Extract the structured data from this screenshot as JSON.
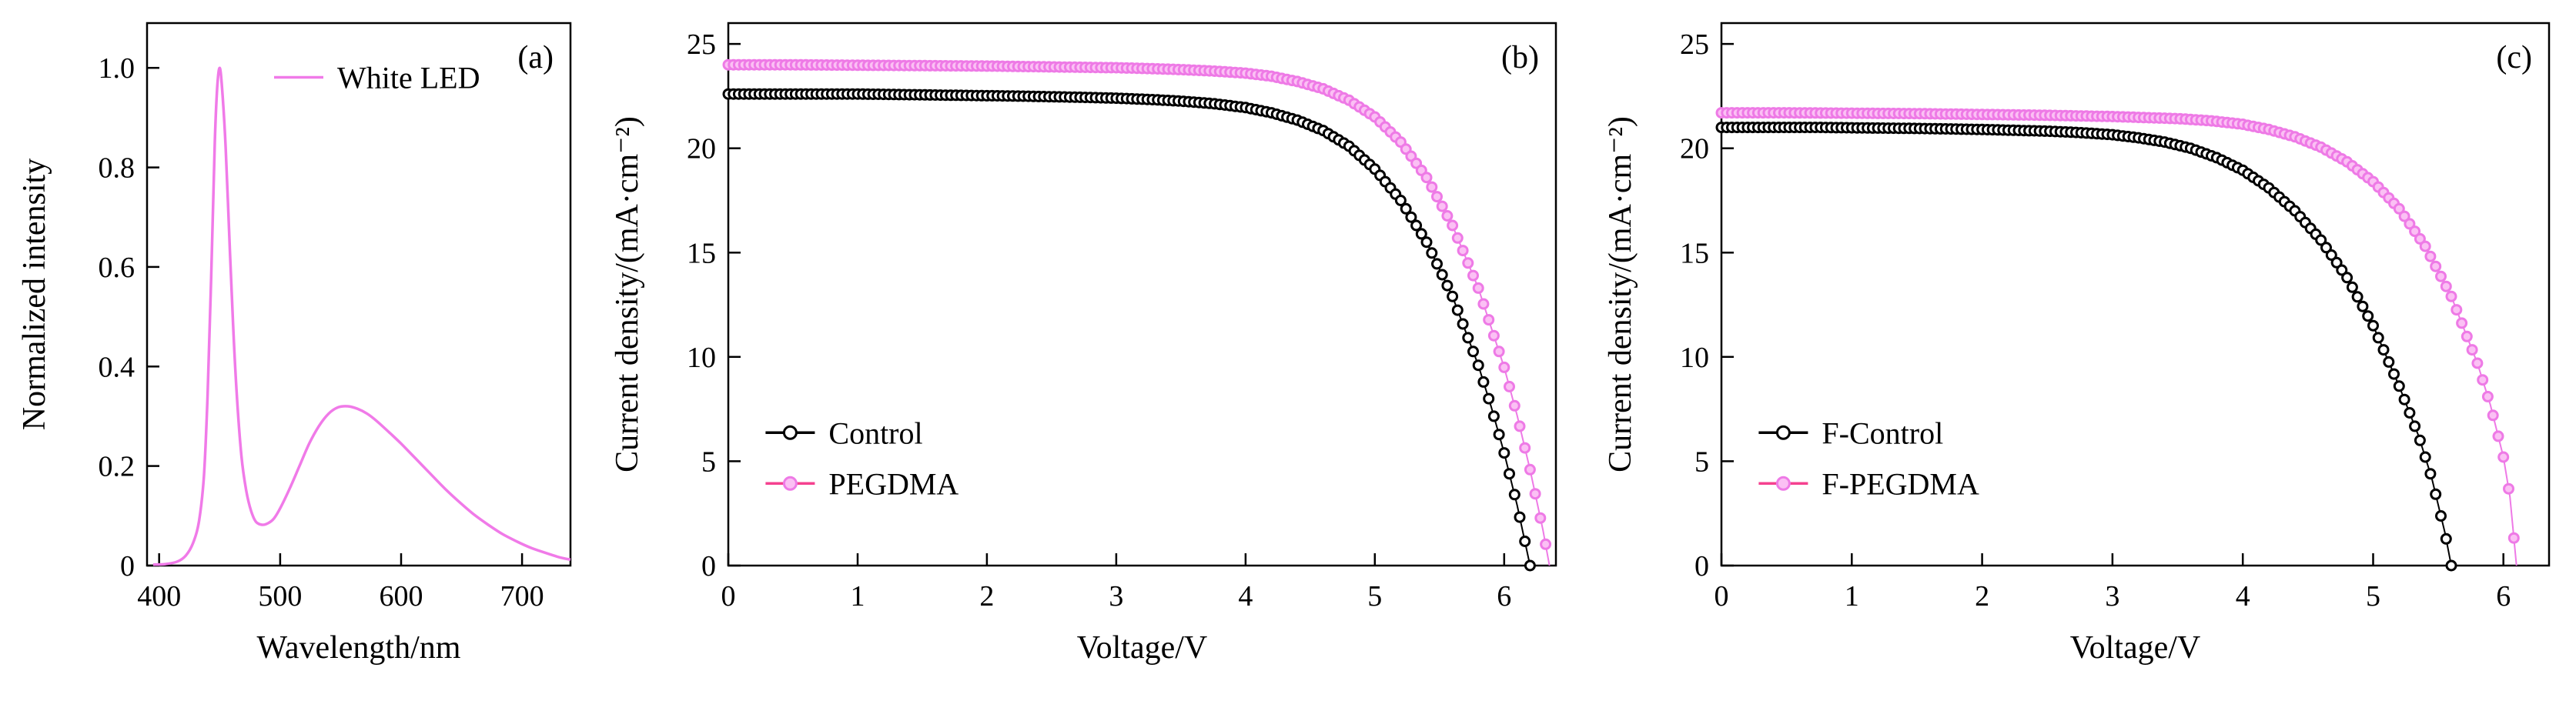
{
  "figure": {
    "background": "#ffffff",
    "accent_color": "#f07ae8"
  },
  "chart_data": [
    {
      "id": "a",
      "type": "line",
      "panel_label": "(a)",
      "xlabel": "Wavelength/nm",
      "ylabel": "Normalized intensity",
      "xlim": [
        390,
        740
      ],
      "ylim": [
        0,
        1.09
      ],
      "xticks": [
        400,
        500,
        600,
        700
      ],
      "yticks": [
        0,
        0.2,
        0.4,
        0.6,
        0.8,
        1.0
      ],
      "ytick_labels": [
        "0",
        "0.2",
        "0.4",
        "0.6",
        "0.8",
        "1.0"
      ],
      "grid": false,
      "legend": {
        "position": "top-inner",
        "x": 0.3,
        "y": 0.1,
        "entries": [
          {
            "label": "White LED",
            "line_color": "#f07ae8",
            "marker": false
          }
        ]
      },
      "series": [
        {
          "name": "White LED",
          "style": "line",
          "color": "#f07ae8",
          "x": [
            395,
            405,
            415,
            422,
            428,
            433,
            437,
            440,
            443,
            446,
            448,
            450,
            452,
            455,
            458,
            461,
            464,
            468,
            472,
            476,
            480,
            485,
            490,
            495,
            500,
            508,
            516,
            524,
            532,
            540,
            548,
            556,
            564,
            572,
            580,
            590,
            600,
            612,
            624,
            636,
            648,
            660,
            672,
            684,
            696,
            708,
            720,
            732,
            740
          ],
          "y": [
            0.002,
            0.003,
            0.008,
            0.02,
            0.045,
            0.09,
            0.18,
            0.34,
            0.58,
            0.85,
            0.96,
            1.0,
            0.96,
            0.84,
            0.66,
            0.49,
            0.35,
            0.22,
            0.15,
            0.11,
            0.088,
            0.082,
            0.085,
            0.095,
            0.115,
            0.155,
            0.2,
            0.245,
            0.28,
            0.305,
            0.318,
            0.32,
            0.315,
            0.305,
            0.29,
            0.268,
            0.245,
            0.215,
            0.185,
            0.155,
            0.128,
            0.103,
            0.082,
            0.063,
            0.048,
            0.035,
            0.025,
            0.016,
            0.012
          ]
        }
      ]
    },
    {
      "id": "b",
      "type": "scatter",
      "panel_label": "(b)",
      "xlabel": "Voltage/V",
      "ylabel": "Current density/(mA·cm⁻²)",
      "xlim": [
        0,
        6.4
      ],
      "ylim": [
        0,
        26
      ],
      "xticks": [
        0,
        1,
        2,
        3,
        4,
        5,
        6
      ],
      "yticks": [
        0,
        5,
        10,
        15,
        20,
        25
      ],
      "grid": false,
      "legend": {
        "position": "bottom-left-inner",
        "x": 0.045,
        "y": 0.755,
        "entries": [
          {
            "label": "Control",
            "line_color": "#000000",
            "marker": true,
            "marker_color": "#000000",
            "marker_fill": "#ffffff"
          },
          {
            "label": "PEGDMA",
            "line_color": "#f5418f",
            "marker": true,
            "marker_color": "#ee7ae6",
            "marker_fill": "#fbc0f4"
          }
        ]
      },
      "series": [
        {
          "name": "Control",
          "style": "marker",
          "marker_color": "#000000",
          "marker_fill": "#ffffff",
          "x": [
            0,
            0.25,
            0.5,
            0.75,
            1,
            1.25,
            1.5,
            1.75,
            2,
            2.25,
            2.5,
            2.75,
            3,
            3.25,
            3.5,
            3.75,
            4,
            4.2,
            4.4,
            4.6,
            4.8,
            5,
            5.2,
            5.4,
            5.6,
            5.8,
            5.9,
            6,
            6.1,
            6.2
          ],
          "y": [
            22.6,
            22.6,
            22.6,
            22.6,
            22.6,
            22.58,
            22.56,
            22.54,
            22.52,
            22.5,
            22.47,
            22.44,
            22.4,
            22.34,
            22.26,
            22.14,
            21.95,
            21.7,
            21.35,
            20.85,
            20.1,
            19.0,
            17.5,
            15.5,
            12.9,
            9.6,
            7.6,
            5.4,
            2.9,
            0
          ]
        },
        {
          "name": "PEGDMA",
          "style": "marker",
          "marker_color": "#ee7ae6",
          "marker_fill": "#fbc0f4",
          "x": [
            0,
            0.5,
            1,
            1.5,
            2,
            2.5,
            3,
            3.25,
            3.5,
            3.75,
            4,
            4.2,
            4.4,
            4.6,
            4.8,
            5,
            5.2,
            5.4,
            5.6,
            5.8,
            6,
            6.1,
            6.2,
            6.3,
            6.35
          ],
          "y": [
            24.0,
            24.0,
            23.98,
            23.96,
            23.94,
            23.9,
            23.86,
            23.82,
            23.77,
            23.7,
            23.6,
            23.45,
            23.2,
            22.85,
            22.3,
            21.5,
            20.3,
            18.6,
            16.3,
            13.3,
            9.5,
            7.2,
            4.6,
            1.7,
            0
          ]
        }
      ]
    },
    {
      "id": "c",
      "type": "scatter",
      "panel_label": "(c)",
      "xlabel": "Voltage/V",
      "ylabel": "Current density/(mA·cm⁻²)",
      "xlim": [
        0,
        6.35
      ],
      "ylim": [
        0,
        26
      ],
      "xticks": [
        0,
        1,
        2,
        3,
        4,
        5,
        6
      ],
      "yticks": [
        0,
        5,
        10,
        15,
        20,
        25
      ],
      "grid": false,
      "legend": {
        "position": "bottom-left-inner",
        "x": 0.045,
        "y": 0.755,
        "entries": [
          {
            "label": "F-Control",
            "line_color": "#000000",
            "marker": true,
            "marker_color": "#000000",
            "marker_fill": "#ffffff"
          },
          {
            "label": "F-PEGDMA",
            "line_color": "#f5418f",
            "marker": true,
            "marker_color": "#ee7ae6",
            "marker_fill": "#fbc0f4"
          }
        ]
      },
      "series": [
        {
          "name": "F-Control",
          "style": "marker",
          "marker_color": "#000000",
          "marker_fill": "#ffffff",
          "x": [
            0,
            0.25,
            0.5,
            0.75,
            1,
            1.5,
            2,
            2.5,
            2.75,
            3,
            3.2,
            3.4,
            3.6,
            3.8,
            4,
            4.2,
            4.4,
            4.6,
            4.8,
            5,
            5.2,
            5.35,
            5.45,
            5.55,
            5.6
          ],
          "y": [
            21.0,
            21.0,
            21.0,
            21.0,
            20.98,
            20.95,
            20.9,
            20.82,
            20.75,
            20.65,
            20.5,
            20.3,
            20.0,
            19.55,
            18.95,
            18.1,
            17.0,
            15.6,
            13.8,
            11.5,
            8.6,
            6.2,
            4.2,
            1.6,
            0
          ]
        },
        {
          "name": "F-PEGDMA",
          "style": "marker",
          "marker_color": "#ee7ae6",
          "marker_fill": "#fbc0f4",
          "x": [
            0,
            0.5,
            1,
            1.5,
            2,
            2.5,
            3,
            3.5,
            3.75,
            4,
            4.2,
            4.4,
            4.6,
            4.8,
            5,
            5.2,
            5.4,
            5.6,
            5.8,
            5.9,
            6,
            6.05,
            6.1
          ],
          "y": [
            21.7,
            21.7,
            21.68,
            21.66,
            21.62,
            21.58,
            21.52,
            21.42,
            21.32,
            21.15,
            20.9,
            20.55,
            20.05,
            19.35,
            18.4,
            17.1,
            15.3,
            12.9,
            9.7,
            7.7,
            5.2,
            3.3,
            0
          ]
        }
      ]
    }
  ]
}
